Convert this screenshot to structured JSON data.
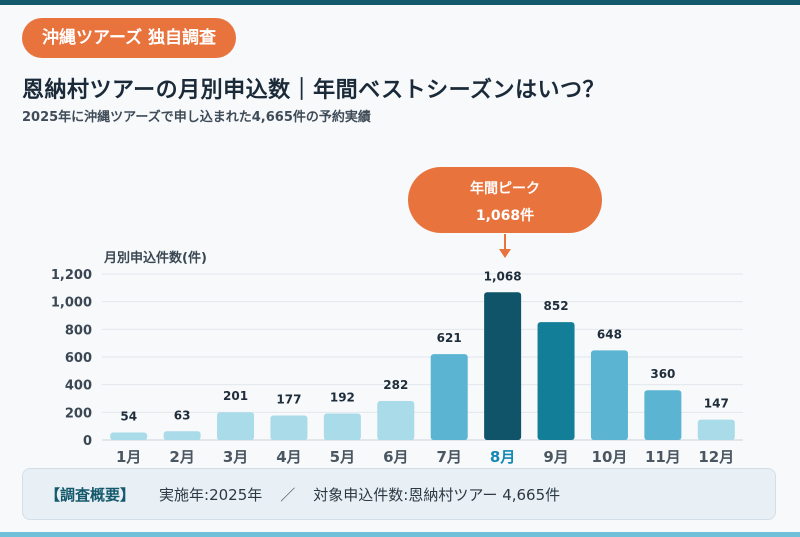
{
  "badge": "沖縄ツアーズ 独自調査",
  "title": "恩納村ツアーの月別申込数｜年間ベストシーズンはいつ？",
  "subtitle": "2025年に沖縄ツアーズで申し込まれた4,665件の予約実績",
  "callout": {
    "line1": "年間ピーク",
    "line2": "1,068件"
  },
  "footer": {
    "title": "【調査概要】",
    "item1": "実施年:2025年",
    "separator": "／",
    "item2": "対象申込件数:恩納村ツアー 4,665件"
  },
  "colors": {
    "accent": "#e8733d",
    "light": "#a9dbe9",
    "mid": "#5ab4d2",
    "dark": "#137e98",
    "peak": "#0f5468",
    "highlight_label": "#1387b5"
  },
  "chart_data": {
    "type": "bar",
    "ylabel": "月別申込件数(件)",
    "ylim": [
      0,
      1200
    ],
    "yticks": [
      0,
      200,
      400,
      600,
      800,
      1000,
      1200
    ],
    "ytick_labels": [
      "0",
      "200",
      "400",
      "600",
      "800",
      "1,000",
      "1,200"
    ],
    "categories": [
      "1月",
      "2月",
      "3月",
      "4月",
      "5月",
      "6月",
      "7月",
      "8月",
      "9月",
      "10月",
      "11月",
      "12月"
    ],
    "values": [
      54,
      63,
      201,
      177,
      192,
      282,
      621,
      1068,
      852,
      648,
      360,
      147
    ],
    "value_labels": [
      "54",
      "63",
      "201",
      "177",
      "192",
      "282",
      "621",
      "1,068",
      "852",
      "648",
      "360",
      "147"
    ],
    "bar_color_keys": [
      "light",
      "light",
      "light",
      "light",
      "light",
      "light",
      "mid",
      "peak",
      "dark",
      "mid",
      "mid",
      "light"
    ],
    "highlight_index": 7,
    "grid": true
  }
}
